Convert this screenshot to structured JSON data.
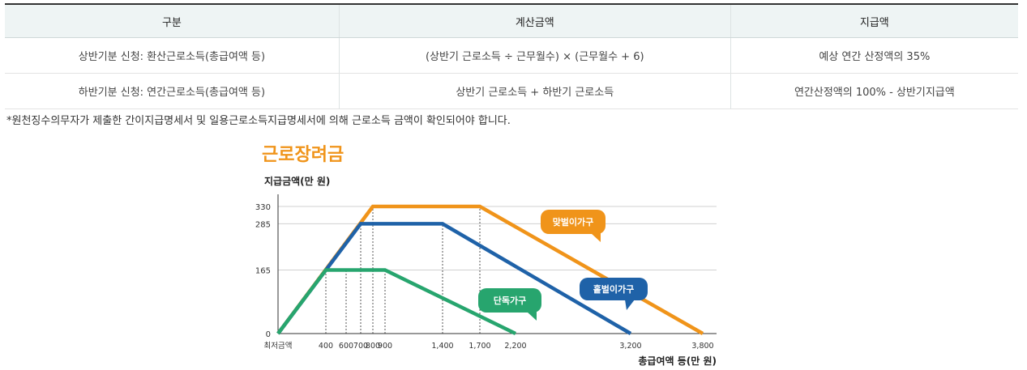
{
  "table": {
    "headers": [
      "구분",
      "계산금액",
      "지급액"
    ],
    "rows": [
      [
        "상반기분 신청: 환산근로소득(총급여액 등)",
        "(상반기 근로소득 ÷ 근무월수) × (근무월수 + 6)",
        "예상 연간 산정액의 35%"
      ],
      [
        "하반기분 신청: 연간근로소득(총급여액 등)",
        "상반기 근로소득 + 하반기 근로소득",
        "연간산정액의 100% - 상반기지급액"
      ]
    ]
  },
  "note": "*원천징수의무자가 제출한 간이지급명세서 및 일용근로소득지급명세서에 의해 근로소득 금액이 확인되어야 합니다.",
  "chart_data": {
    "type": "line",
    "title": "근로장려금",
    "ylabel": "지급금액(만 원)",
    "xlabel": "총급여액 등(만 원)",
    "x_tick_labels": [
      "최저금액",
      "400",
      "600",
      "700",
      "800",
      "900",
      "1,400",
      "1,700",
      "2,200",
      "3,200",
      "3,800"
    ],
    "y_ticks": [
      0,
      165,
      285,
      330
    ],
    "ylim": [
      0,
      330
    ],
    "grid": true,
    "series": [
      {
        "name": "단독가구",
        "color": "#27a56e",
        "points": [
          [
            0,
            0
          ],
          [
            400,
            165
          ],
          [
            900,
            165
          ],
          [
            2200,
            0
          ]
        ]
      },
      {
        "name": "홑벌이가구",
        "color": "#1f62a8",
        "points": [
          [
            0,
            0
          ],
          [
            700,
            285
          ],
          [
            1400,
            285
          ],
          [
            3200,
            0
          ]
        ]
      },
      {
        "name": "맞벌이가구",
        "color": "#f0941a",
        "points": [
          [
            0,
            0
          ],
          [
            800,
            330
          ],
          [
            1700,
            330
          ],
          [
            3800,
            0
          ]
        ]
      }
    ]
  }
}
